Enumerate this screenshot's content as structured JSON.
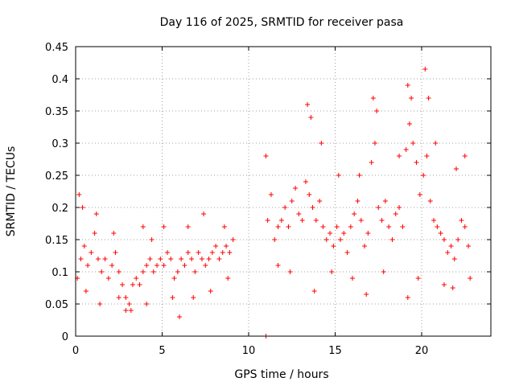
{
  "chart_data": {
    "type": "scatter",
    "title": "Day 116 of 2025, SRMTID for receiver pasa",
    "xlabel": "GPS time / hours",
    "ylabel": "SRMTID / TECUs",
    "xlim": [
      0,
      24
    ],
    "ylim": [
      0,
      0.45
    ],
    "x_ticks": [
      "0",
      "5",
      "10",
      "15",
      "20"
    ],
    "y_ticks": [
      "0",
      "0.05",
      "0.1",
      "0.15",
      "0.2",
      "0.25",
      "0.3",
      "0.35",
      "0.4",
      "0.45"
    ],
    "grid": true,
    "marker": "+",
    "color": "#ff0000",
    "series": [
      {
        "name": "SRMTID",
        "points": [
          [
            0.1,
            0.09
          ],
          [
            0.3,
            0.12
          ],
          [
            0.5,
            0.14
          ],
          [
            0.7,
            0.11
          ],
          [
            0.9,
            0.13
          ],
          [
            1.1,
            0.16
          ],
          [
            1.3,
            0.12
          ],
          [
            1.5,
            0.1
          ],
          [
            1.7,
            0.12
          ],
          [
            1.9,
            0.09
          ],
          [
            2.1,
            0.11
          ],
          [
            2.3,
            0.13
          ],
          [
            2.5,
            0.1
          ],
          [
            2.7,
            0.08
          ],
          [
            2.9,
            0.06
          ],
          [
            3.1,
            0.05
          ],
          [
            3.3,
            0.08
          ],
          [
            3.5,
            0.09
          ],
          [
            3.7,
            0.08
          ],
          [
            3.9,
            0.1
          ],
          [
            4.1,
            0.11
          ],
          [
            4.3,
            0.12
          ],
          [
            4.5,
            0.1
          ],
          [
            4.7,
            0.11
          ],
          [
            4.9,
            0.12
          ],
          [
            5.1,
            0.11
          ],
          [
            5.3,
            0.13
          ],
          [
            5.5,
            0.12
          ],
          [
            5.7,
            0.09
          ],
          [
            5.9,
            0.1
          ],
          [
            6.1,
            0.12
          ],
          [
            6.3,
            0.11
          ],
          [
            6.5,
            0.13
          ],
          [
            6.7,
            0.12
          ],
          [
            6.9,
            0.1
          ],
          [
            7.1,
            0.13
          ],
          [
            7.3,
            0.12
          ],
          [
            7.5,
            0.11
          ],
          [
            7.7,
            0.12
          ],
          [
            7.9,
            0.13
          ],
          [
            8.1,
            0.14
          ],
          [
            8.3,
            0.12
          ],
          [
            8.5,
            0.13
          ],
          [
            8.7,
            0.14
          ],
          [
            8.9,
            0.13
          ],
          [
            9.1,
            0.15
          ],
          [
            0.2,
            0.22
          ],
          [
            0.4,
            0.2
          ],
          [
            1.2,
            0.19
          ],
          [
            2.2,
            0.16
          ],
          [
            3.9,
            0.17
          ],
          [
            4.4,
            0.15
          ],
          [
            5.1,
            0.17
          ],
          [
            6.5,
            0.17
          ],
          [
            7.4,
            0.19
          ],
          [
            8.6,
            0.17
          ],
          [
            0.6,
            0.07
          ],
          [
            1.4,
            0.05
          ],
          [
            2.5,
            0.06
          ],
          [
            2.9,
            0.04
          ],
          [
            3.2,
            0.04
          ],
          [
            4.1,
            0.05
          ],
          [
            5.6,
            0.06
          ],
          [
            6.0,
            0.03
          ],
          [
            6.8,
            0.06
          ],
          [
            7.8,
            0.07
          ],
          [
            8.8,
            0.09
          ],
          [
            11.0,
            0.0
          ],
          [
            11.1,
            0.18
          ],
          [
            11.3,
            0.22
          ],
          [
            11.5,
            0.15
          ],
          [
            11.7,
            0.17
          ],
          [
            11.9,
            0.18
          ],
          [
            12.1,
            0.2
          ],
          [
            12.3,
            0.17
          ],
          [
            12.5,
            0.21
          ],
          [
            12.7,
            0.23
          ],
          [
            12.9,
            0.19
          ],
          [
            13.1,
            0.18
          ],
          [
            13.3,
            0.24
          ],
          [
            13.5,
            0.22
          ],
          [
            13.7,
            0.2
          ],
          [
            13.9,
            0.18
          ],
          [
            14.1,
            0.21
          ],
          [
            14.3,
            0.17
          ],
          [
            14.5,
            0.15
          ],
          [
            14.7,
            0.16
          ],
          [
            14.9,
            0.14
          ],
          [
            15.1,
            0.17
          ],
          [
            15.3,
            0.15
          ],
          [
            15.5,
            0.16
          ],
          [
            15.7,
            0.13
          ],
          [
            15.9,
            0.17
          ],
          [
            16.1,
            0.19
          ],
          [
            16.3,
            0.21
          ],
          [
            16.5,
            0.18
          ],
          [
            16.7,
            0.14
          ],
          [
            16.9,
            0.16
          ],
          [
            17.1,
            0.27
          ],
          [
            17.3,
            0.3
          ],
          [
            17.5,
            0.2
          ],
          [
            17.7,
            0.18
          ],
          [
            17.9,
            0.21
          ],
          [
            18.1,
            0.17
          ],
          [
            18.3,
            0.15
          ],
          [
            18.5,
            0.19
          ],
          [
            18.7,
            0.2
          ],
          [
            18.9,
            0.17
          ],
          [
            19.1,
            0.29
          ],
          [
            19.3,
            0.33
          ],
          [
            19.5,
            0.3
          ],
          [
            19.7,
            0.27
          ],
          [
            19.9,
            0.22
          ],
          [
            20.1,
            0.25
          ],
          [
            20.3,
            0.28
          ],
          [
            20.5,
            0.21
          ],
          [
            20.7,
            0.18
          ],
          [
            20.9,
            0.17
          ],
          [
            21.1,
            0.16
          ],
          [
            21.3,
            0.15
          ],
          [
            21.5,
            0.13
          ],
          [
            21.7,
            0.14
          ],
          [
            21.9,
            0.12
          ],
          [
            22.1,
            0.15
          ],
          [
            22.3,
            0.18
          ],
          [
            22.5,
            0.17
          ],
          [
            22.7,
            0.14
          ],
          [
            11.0,
            0.28
          ],
          [
            13.4,
            0.36
          ],
          [
            13.6,
            0.34
          ],
          [
            14.2,
            0.3
          ],
          [
            15.2,
            0.25
          ],
          [
            16.4,
            0.25
          ],
          [
            17.2,
            0.37
          ],
          [
            17.4,
            0.35
          ],
          [
            18.7,
            0.28
          ],
          [
            19.2,
            0.39
          ],
          [
            19.4,
            0.37
          ],
          [
            20.2,
            0.415
          ],
          [
            20.4,
            0.37
          ],
          [
            20.8,
            0.3
          ],
          [
            22.0,
            0.26
          ],
          [
            22.5,
            0.28
          ],
          [
            11.7,
            0.11
          ],
          [
            12.4,
            0.1
          ],
          [
            13.8,
            0.07
          ],
          [
            14.8,
            0.1
          ],
          [
            16.0,
            0.09
          ],
          [
            16.8,
            0.065
          ],
          [
            17.8,
            0.1
          ],
          [
            19.2,
            0.06
          ],
          [
            19.8,
            0.09
          ],
          [
            21.3,
            0.08
          ],
          [
            21.8,
            0.075
          ],
          [
            22.8,
            0.09
          ]
        ]
      }
    ]
  }
}
